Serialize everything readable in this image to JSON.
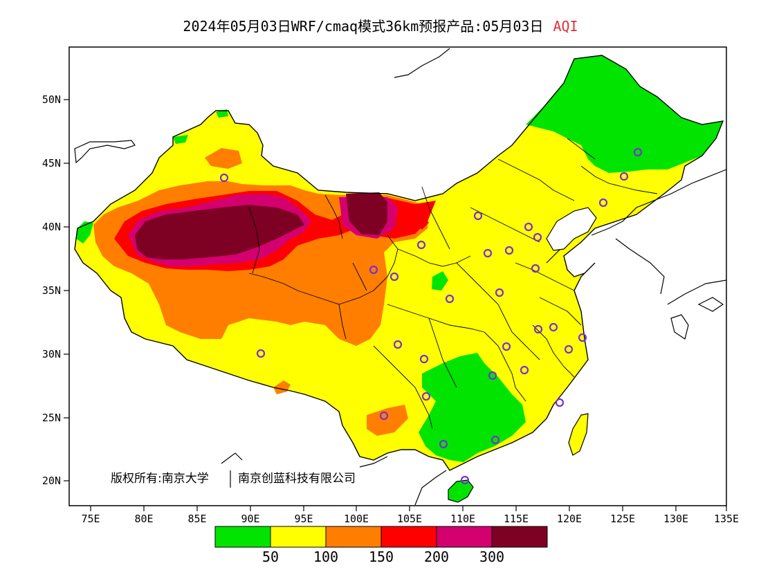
{
  "header": {
    "title_main": "2024年05月03日WRF/cmaq模式36km预报产品:05月03日",
    "title_variable": "AQI"
  },
  "map": {
    "lat_ticks": [
      "50N",
      "45N",
      "40N",
      "35N",
      "30N",
      "25N",
      "20N"
    ],
    "lon_ticks": [
      "75E",
      "80E",
      "85E",
      "90E",
      "95E",
      "100E",
      "105E",
      "110E",
      "115E",
      "120E",
      "125E",
      "130E",
      "135E"
    ],
    "copyright_left": "版权所有:南京大学",
    "copyright_right": "南京创蓝科技有限公司"
  },
  "legend": {
    "colors": [
      "#00e400",
      "#ffff00",
      "#ff7e00",
      "#ff0000",
      "#d4006f",
      "#7e0023"
    ],
    "labels": [
      "50",
      "100",
      "150",
      "200",
      "300"
    ]
  }
}
